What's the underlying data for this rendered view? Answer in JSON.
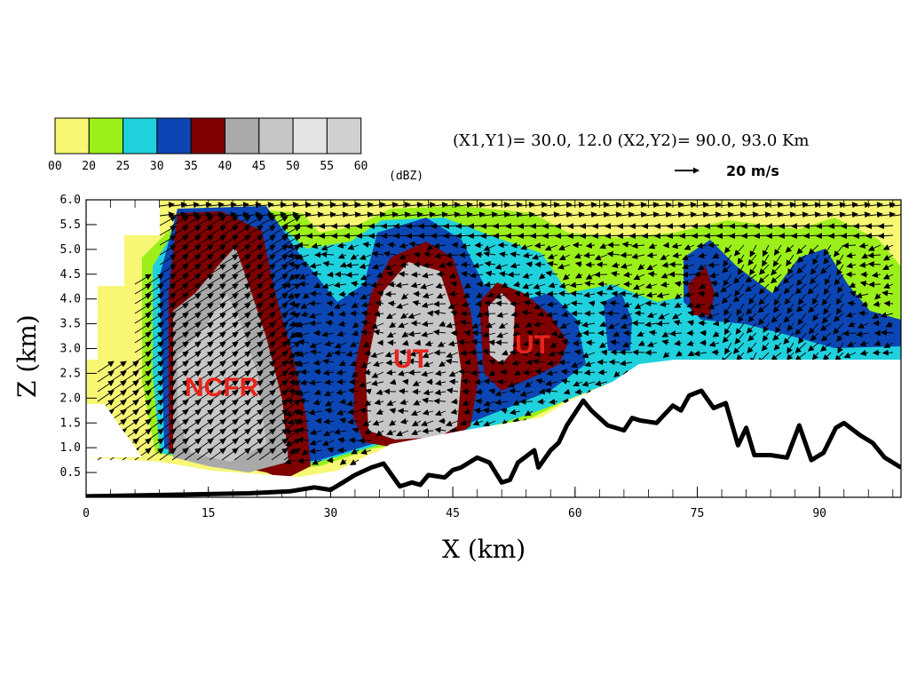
{
  "colors": {
    "bins": [
      "#f7f774",
      "#9bf01a",
      "#1fd1dd",
      "#0b46b4",
      "#800000",
      "#a9a9a9",
      "#c6c6c6",
      "#e3e3e3",
      "#d0d0d0"
    ],
    "terrain": "#000000",
    "annotation": "#e8231b",
    "vector": "#000000"
  },
  "colorbar": {
    "ticks": [
      "00",
      "20",
      "25",
      "30",
      "35",
      "40",
      "45",
      "50",
      "55",
      "60"
    ],
    "unit": "(dBZ)"
  },
  "header": {
    "coords": "(X1,Y1)= 30.0, 12.0  (X2,Y2)= 90.0, 93.0 Km",
    "ref_vector": "20 m/s"
  },
  "annotations": [
    "NCFR",
    "UT",
    "UT"
  ],
  "chart_data": {
    "type": "line",
    "xlabel": "X (km)",
    "ylabel": "Z (km)",
    "xlim": [
      0,
      100
    ],
    "ylim": [
      0,
      6
    ],
    "xticks": [
      0,
      15,
      30,
      45,
      60,
      75,
      90
    ],
    "yticks": [
      0.5,
      1.0,
      1.5,
      2.0,
      2.5,
      3.0,
      3.5,
      4.0,
      4.5,
      5.0,
      5.5,
      6.0
    ],
    "ytick_labels": [
      "0.5",
      "1.0",
      "1.5",
      "2.0",
      "2.5",
      "3.0",
      "3.5",
      "4.0",
      "4.5",
      "5.0",
      "5.5",
      "6.0"
    ],
    "series": [
      {
        "x": [
          0,
          10,
          20,
          25,
          28,
          30,
          31.5,
          33,
          35,
          36.5,
          37.5,
          38.5,
          40,
          41,
          42,
          44,
          45,
          46,
          48,
          49.5,
          51,
          52,
          53,
          55,
          55.5,
          57,
          58,
          59,
          61,
          62,
          64,
          66,
          67,
          68,
          70,
          72,
          73,
          74,
          75.5,
          77,
          78.5,
          80,
          81,
          82,
          84,
          86,
          87.5,
          89,
          90.5,
          92,
          93,
          95,
          96.5,
          98,
          100
        ],
        "y": [
          0.02,
          0.05,
          0.08,
          0.12,
          0.2,
          0.15,
          0.3,
          0.45,
          0.6,
          0.68,
          0.45,
          0.22,
          0.3,
          0.25,
          0.45,
          0.4,
          0.55,
          0.6,
          0.8,
          0.7,
          0.3,
          0.35,
          0.7,
          0.95,
          0.6,
          0.95,
          1.1,
          1.45,
          1.95,
          1.75,
          1.45,
          1.35,
          1.6,
          1.55,
          1.5,
          1.85,
          1.75,
          2.05,
          2.15,
          1.8,
          1.9,
          1.05,
          1.4,
          0.85,
          0.85,
          0.8,
          1.45,
          0.75,
          0.9,
          1.4,
          1.5,
          1.25,
          1.1,
          0.8,
          0.6
        ]
      }
    ]
  }
}
